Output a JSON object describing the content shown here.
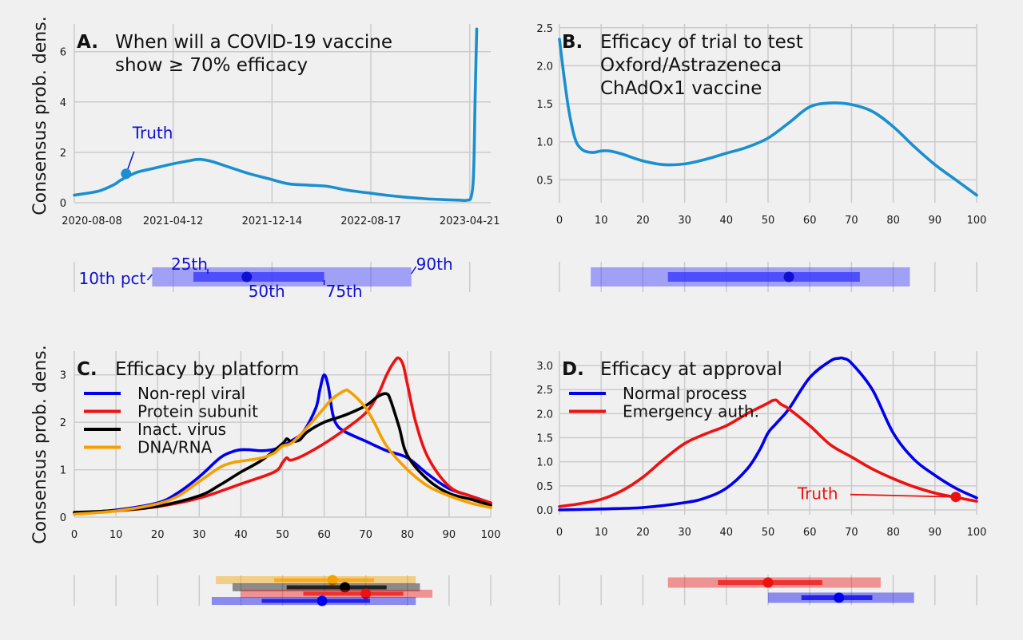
{
  "y_axis_label": "Consensus prob. dens.",
  "chart_data": [
    {
      "id": "A",
      "type": "line",
      "letter": "A.",
      "title_lines": [
        "When will a COVID-19 vaccine",
        "show ≥ 70% efficacy"
      ],
      "xlabel": "",
      "ylabel": "Consensus prob. dens.",
      "x_ticks": [
        "2020-08-08",
        "2021-04-12",
        "2021-12-14",
        "2022-08-17",
        "2023-04-21"
      ],
      "x_range_days": [
        0,
        1070
      ],
      "ylim": [
        0,
        7.1
      ],
      "y_ticks": [
        0,
        2,
        4,
        6
      ],
      "grid": true,
      "series": [
        {
          "color": "#1a8fd0",
          "x": [
            0,
            60,
            100,
            120,
            160,
            200,
            240,
            290,
            320,
            350,
            400,
            450,
            500,
            550,
            600,
            650,
            700,
            750,
            800,
            850,
            900,
            950,
            990,
            1010,
            1020,
            1026,
            1030,
            1034
          ],
          "y": [
            0.3,
            0.45,
            0.7,
            0.9,
            1.2,
            1.35,
            1.5,
            1.65,
            1.72,
            1.65,
            1.4,
            1.15,
            0.95,
            0.75,
            0.7,
            0.65,
            0.5,
            0.4,
            0.3,
            0.22,
            0.16,
            0.12,
            0.1,
            0.1,
            0.25,
            1.2,
            4.2,
            6.9
          ]
        }
      ],
      "annotations": [
        {
          "label": "Truth",
          "x": 133,
          "y": 1.15,
          "color": "#1010d0"
        }
      ],
      "quantiles": {
        "p10": 200,
        "p25": 306,
        "p50": 443,
        "p75": 642,
        "p90": 866,
        "color": "#3333ff",
        "dot_color": "#1010d0"
      },
      "quantile_labels": [
        "10th pct",
        "25th",
        "50th",
        "75th",
        "90th"
      ],
      "quantile_tick_days": [
        0,
        254,
        508,
        762,
        1016
      ]
    },
    {
      "id": "B",
      "type": "line",
      "letter": "B.",
      "title_lines": [
        "Efficacy of trial to test",
        "Oxford/Astrazeneca",
        "ChAdOx1 vaccine"
      ],
      "xlabel": "",
      "xlim": [
        0,
        100
      ],
      "x_ticks": [
        0,
        10,
        20,
        30,
        40,
        50,
        60,
        70,
        80,
        90,
        100
      ],
      "ylim": [
        0.2,
        2.55
      ],
      "y_ticks": [
        0.5,
        1.0,
        1.5,
        2.0,
        2.5
      ],
      "grid": true,
      "series": [
        {
          "color": "#1a8fd0",
          "x": [
            0,
            1,
            2,
            3,
            4,
            5,
            6,
            8,
            10,
            12,
            15,
            20,
            25,
            30,
            35,
            40,
            45,
            50,
            55,
            60,
            65,
            70,
            75,
            80,
            85,
            90,
            95,
            100
          ],
          "y": [
            2.35,
            1.9,
            1.5,
            1.2,
            1.0,
            0.92,
            0.88,
            0.86,
            0.88,
            0.88,
            0.84,
            0.75,
            0.7,
            0.71,
            0.77,
            0.85,
            0.93,
            1.05,
            1.25,
            1.46,
            1.51,
            1.49,
            1.4,
            1.2,
            0.94,
            0.7,
            0.5,
            0.3
          ]
        }
      ],
      "quantiles": {
        "p10": 7.5,
        "p25": 26,
        "p50": 55,
        "p75": 72,
        "p90": 84,
        "color": "#3333ff",
        "dot_color": "#1010d0"
      }
    },
    {
      "id": "C",
      "type": "line",
      "letter": "C.",
      "title_lines": [
        "Efficacy by platform"
      ],
      "xlabel": "",
      "ylabel": "Consensus prob. dens.",
      "xlim": [
        0,
        100
      ],
      "x_ticks": [
        0,
        10,
        20,
        30,
        40,
        50,
        60,
        70,
        80,
        90,
        100
      ],
      "ylim": [
        0,
        3.5
      ],
      "y_ticks": [
        0,
        1,
        2,
        3
      ],
      "grid": true,
      "legend_position": "top-left",
      "series": [
        {
          "name": "Non-repl viral",
          "color": "#0000ee",
          "x": [
            0,
            10,
            20,
            25,
            30,
            35,
            38,
            40,
            42,
            45,
            48,
            50,
            52,
            55,
            58,
            59,
            60,
            61,
            62,
            63,
            65,
            70,
            75,
            80,
            85,
            90,
            95,
            100
          ],
          "y": [
            0.08,
            0.15,
            0.3,
            0.52,
            0.85,
            1.25,
            1.38,
            1.42,
            1.42,
            1.4,
            1.43,
            1.5,
            1.6,
            1.8,
            2.3,
            2.7,
            3.0,
            2.75,
            2.2,
            1.95,
            1.8,
            1.6,
            1.4,
            1.25,
            0.9,
            0.6,
            0.45,
            0.3
          ]
        },
        {
          "name": "Protein subunit",
          "color": "#ee1111",
          "x": [
            0,
            10,
            20,
            30,
            40,
            48,
            50,
            51,
            52,
            55,
            60,
            65,
            70,
            73,
            75,
            77,
            78,
            79,
            80,
            82,
            85,
            90,
            95,
            100
          ],
          "y": [
            0.08,
            0.13,
            0.22,
            0.4,
            0.7,
            0.95,
            1.15,
            1.25,
            1.2,
            1.3,
            1.55,
            1.85,
            2.2,
            2.6,
            3.0,
            3.3,
            3.35,
            3.2,
            2.8,
            2.0,
            1.25,
            0.65,
            0.45,
            0.3
          ]
        },
        {
          "name": "Inact. virus",
          "color": "#000000",
          "x": [
            0,
            10,
            20,
            30,
            35,
            40,
            45,
            50,
            51,
            52,
            54,
            56,
            60,
            65,
            70,
            73,
            75,
            76,
            78,
            80,
            85,
            90,
            95,
            100
          ],
          "y": [
            0.1,
            0.14,
            0.23,
            0.45,
            0.68,
            0.95,
            1.2,
            1.55,
            1.65,
            1.6,
            1.62,
            1.8,
            2.0,
            2.15,
            2.35,
            2.55,
            2.6,
            2.45,
            1.9,
            1.3,
            0.78,
            0.5,
            0.38,
            0.25
          ]
        },
        {
          "name": "DNA/RNA",
          "color": "#f5a000",
          "x": [
            0,
            10,
            20,
            25,
            30,
            35,
            38,
            40,
            45,
            48,
            50,
            52,
            55,
            58,
            60,
            62,
            65,
            66,
            68,
            70,
            72,
            75,
            80,
            85,
            90,
            95,
            100
          ],
          "y": [
            0.06,
            0.13,
            0.28,
            0.45,
            0.75,
            1.05,
            1.15,
            1.18,
            1.25,
            1.35,
            1.5,
            1.55,
            1.8,
            2.1,
            2.3,
            2.5,
            2.67,
            2.65,
            2.5,
            2.3,
            2.0,
            1.5,
            1.0,
            0.65,
            0.45,
            0.3,
            0.2
          ]
        }
      ],
      "quantiles": [
        {
          "p10": 34,
          "p25": 48,
          "p50": 62,
          "p75": 72,
          "p90": 82,
          "color": "#f5a000",
          "dot_color": "#f5a000"
        },
        {
          "p10": 38,
          "p25": 51,
          "p50": 65,
          "p75": 75,
          "p90": 83,
          "color": "#000000",
          "dot_color": "#000000"
        },
        {
          "p10": 40,
          "p25": 55,
          "p50": 70,
          "p75": 79,
          "p90": 86,
          "color": "#ee1111",
          "dot_color": "#ee1111"
        },
        {
          "p10": 33,
          "p25": 45,
          "p50": 59.5,
          "p75": 71,
          "p90": 82,
          "color": "#0000ee",
          "dot_color": "#0000ee"
        }
      ]
    },
    {
      "id": "D",
      "type": "line",
      "letter": "D.",
      "title_lines": [
        "Efficacy at approval"
      ],
      "xlabel": "",
      "xlim": [
        0,
        100
      ],
      "x_ticks": [
        0,
        10,
        20,
        30,
        40,
        50,
        60,
        70,
        80,
        90,
        100
      ],
      "ylim": [
        -0.1,
        3.3
      ],
      "y_ticks": [
        0.0,
        0.5,
        1.0,
        1.5,
        2.0,
        2.5,
        3.0
      ],
      "grid": true,
      "legend_position": "top-left",
      "series": [
        {
          "name": "Normal process",
          "color": "#0000ee",
          "x": [
            0,
            10,
            20,
            30,
            35,
            40,
            45,
            48,
            50,
            52,
            55,
            60,
            65,
            67,
            68,
            70,
            75,
            80,
            85,
            90,
            95,
            100
          ],
          "y": [
            0.0,
            0.02,
            0.05,
            0.15,
            0.25,
            0.45,
            0.85,
            1.25,
            1.6,
            1.8,
            2.1,
            2.75,
            3.1,
            3.15,
            3.15,
            3.05,
            2.5,
            1.6,
            1.05,
            0.72,
            0.45,
            0.25
          ]
        },
        {
          "name": "Emergency auth.",
          "color": "#ee1111",
          "x": [
            0,
            5,
            10,
            15,
            20,
            25,
            30,
            35,
            40,
            45,
            50,
            51,
            52,
            53,
            55,
            60,
            65,
            70,
            75,
            80,
            85,
            90,
            95,
            100
          ],
          "y": [
            0.07,
            0.13,
            0.22,
            0.4,
            0.68,
            1.05,
            1.38,
            1.58,
            1.75,
            2.0,
            2.22,
            2.27,
            2.28,
            2.2,
            2.1,
            1.75,
            1.35,
            1.1,
            0.85,
            0.65,
            0.48,
            0.35,
            0.26,
            0.18
          ]
        }
      ],
      "annotations": [
        {
          "label": "Truth",
          "x": 95,
          "y": 0.27,
          "color": "#ee1111"
        }
      ],
      "quantiles": [
        {
          "p10": 26,
          "p25": 38,
          "p50": 50,
          "p75": 63,
          "p90": 77,
          "color": "#ee1111",
          "dot_color": "#ee1111"
        },
        {
          "p10": 50,
          "p25": 58,
          "p50": 67,
          "p75": 75,
          "p90": 85,
          "color": "#0000ee",
          "dot_color": "#0000ee"
        }
      ]
    }
  ]
}
